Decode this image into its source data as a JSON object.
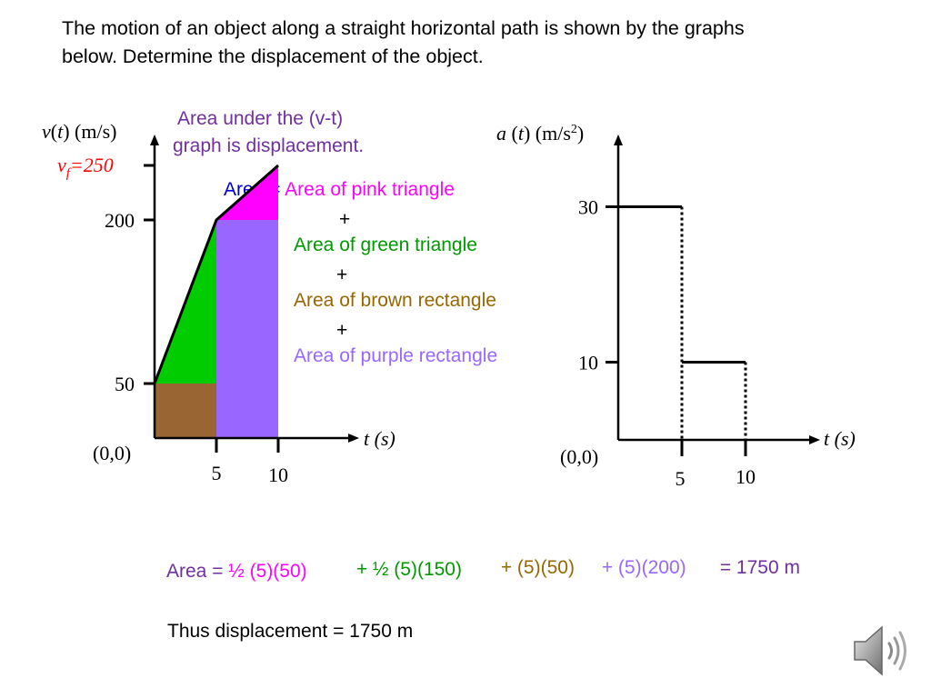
{
  "problem": {
    "line1": "The motion of an object along a straight horizontal path is shown by the graphs",
    "line2": "below. Determine the displacement of the object."
  },
  "colors": {
    "pink": "#ff00ff",
    "green": "#00cc00",
    "brown": "#996633",
    "purple": "#9966ff",
    "darkpurple": "#7030a0",
    "navy": "#0000cc",
    "red": "#ff0000",
    "gold": "#996600"
  },
  "chart_data": [
    {
      "type": "line",
      "ylabel_parts": [
        "v",
        "(",
        "t",
        ") (m/s)"
      ],
      "xlabel": "t (s)",
      "origin_label": "(0,0)",
      "x_ticks": [
        "5",
        "10"
      ],
      "y_ticks": [
        "50",
        "200"
      ],
      "vf_label": {
        "v": "v",
        "sub": "f",
        "rest": "=250"
      },
      "points": [
        {
          "x": 0,
          "y": 50
        },
        {
          "x": 5,
          "y": 200
        },
        {
          "x": 10,
          "y": 250
        }
      ],
      "xlim": [
        0,
        11.5
      ],
      "ylim": [
        0,
        300
      ],
      "shaded_regions": [
        {
          "name": "pink triangle",
          "color": "#ff00ff"
        },
        {
          "name": "green triangle",
          "color": "#00cc00"
        },
        {
          "name": "brown rectangle",
          "color": "#996633"
        },
        {
          "name": "purple rectangle",
          "color": "#9966ff"
        }
      ],
      "annotation_lines": [
        "Area under the (v-t)",
        "graph is displacement."
      ]
    },
    {
      "type": "line",
      "ylabel_parts": [
        "a",
        " (",
        "t",
        ") (m/s",
        "2",
        ")"
      ],
      "xlabel": "t (s)",
      "origin_label": "(0,0)",
      "x_ticks": [
        "5",
        "10"
      ],
      "y_ticks": [
        "10",
        "30"
      ],
      "segments": [
        {
          "x_start": 0,
          "x_end": 5,
          "y": 30
        },
        {
          "x_start": 5,
          "x_end": 10,
          "y": 10
        }
      ],
      "xlim": [
        0,
        15
      ],
      "ylim": [
        0,
        40
      ]
    }
  ],
  "area_text": {
    "area_label": "Area",
    "eq": " = ",
    "pink": "Area of pink triangle",
    "plus": "+",
    "green": "Area of green triangle",
    "brown": "Area of brown rectangle",
    "purple": "Area of  purple rectangle"
  },
  "equation": {
    "t1": "Area = ",
    "t2": "½ (5)(50)",
    "t3": " + ½ (5)(150)",
    "t4": " + (5)(50)",
    "t5": " + (5)(200)",
    "t6": " = 1750 m"
  },
  "conclusion": "Thus displacement = 1750 m",
  "icons": {
    "speaker": "speaker-icon"
  }
}
